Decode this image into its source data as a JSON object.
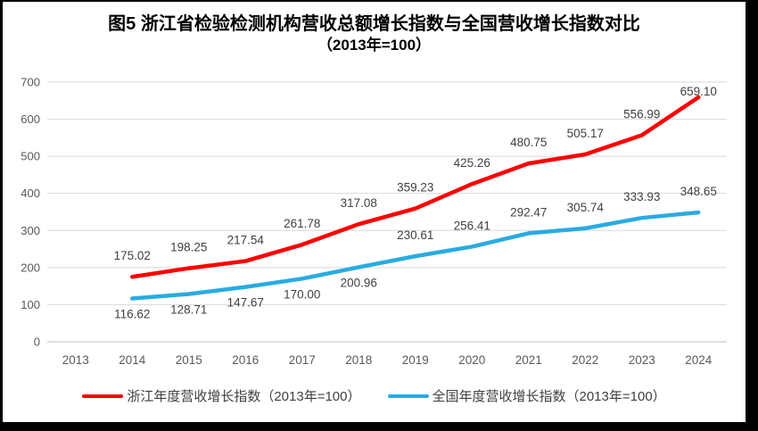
{
  "figure": {
    "title_line1": "图5  浙江省检验检测机构营收总额增长指数与全国营收增长指数对比",
    "title_line2": "（2013年=100）"
  },
  "chart_data": {
    "type": "line",
    "title": "图5 浙江省检验检测机构营收总额增长指数与全国营收增长指数对比（2013年=100）",
    "categories": [
      "2013",
      "2014",
      "2015",
      "2016",
      "2017",
      "2018",
      "2019",
      "2020",
      "2021",
      "2022",
      "2023",
      "2024"
    ],
    "series": [
      {
        "id": "zhejiang-series",
        "name": "浙江年度营收增长指数（2013年=100）",
        "color": "#FE0000",
        "start_category": "2014",
        "values": [
          175.02,
          198.25,
          217.54,
          261.78,
          317.08,
          359.23,
          425.26,
          480.75,
          505.17,
          556.99,
          659.1
        ],
        "label_position": "above"
      },
      {
        "id": "national-series",
        "name": "全国年度营收增长指数（2013年=100）",
        "color": "#29ABE2",
        "start_category": "2014",
        "values": [
          116.62,
          128.71,
          147.67,
          170.0,
          200.96,
          230.61,
          256.41,
          292.47,
          305.74,
          333.93,
          348.65
        ],
        "label_position": "above",
        "label_below_count": 5
      }
    ],
    "ylim": [
      0,
      700
    ],
    "y_ticks": [
      0,
      100,
      200,
      300,
      400,
      500,
      600,
      700
    ],
    "grid": true,
    "data_labels": true,
    "legend_position": "bottom"
  },
  "style_colors": {
    "gridline": "#D9D9D9",
    "axis_line": "#BFBFBF",
    "tick_label": "#595959",
    "data_label": "#404040"
  }
}
